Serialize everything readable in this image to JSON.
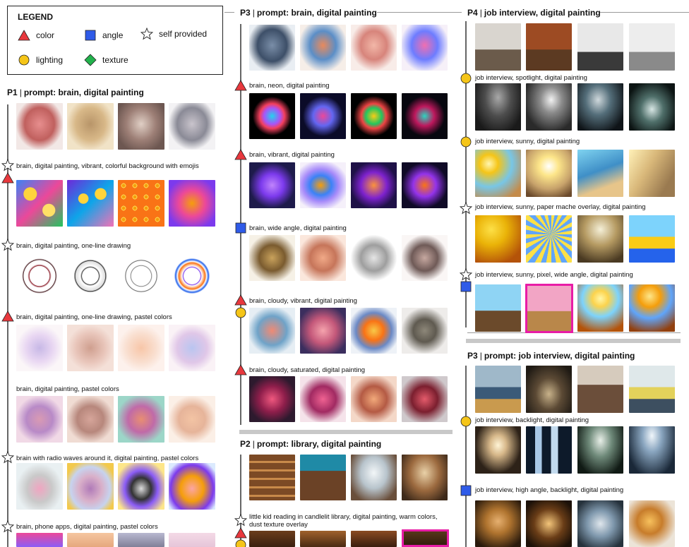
{
  "legend": {
    "title": "LEGEND",
    "items": [
      {
        "name": "color",
        "icon": "triangle-icon",
        "color": "#e8383d"
      },
      {
        "name": "angle",
        "icon": "square-icon",
        "color": "#2f5be8"
      },
      {
        "name": "self provided",
        "icon": "star-icon",
        "color": "#ffffff"
      },
      {
        "name": "lighting",
        "icon": "circle-icon",
        "color": "#f5c518"
      },
      {
        "name": "texture",
        "icon": "diamond-icon",
        "color": "#22b24c"
      }
    ]
  },
  "sections": {
    "p1_brain": {
      "participant": "P1",
      "prompt": "prompt: brain, digital painting",
      "steps": [
        {
          "label": ""
        },
        {
          "label": "brain, digital painting, vibrant, colorful background with emojis"
        },
        {
          "label": "brain, digital painting, one-line drawing"
        },
        {
          "label": "brain, digital painting, one-line drawing, pastel colors"
        },
        {
          "label": "brain, digital painting, pastel colors"
        },
        {
          "label": "brain with radio waves around it, digital painting, pastel colors"
        },
        {
          "label": "brain, phone apps, digital painting, pastel colors"
        }
      ]
    },
    "p3_brain": {
      "participant": "P3",
      "prompt": "prompt: brain, digital painting",
      "steps": [
        {
          "label": ""
        },
        {
          "label": "brain, neon, digital painting"
        },
        {
          "label": "brain, vibrant, digital painting"
        },
        {
          "label": "brain, wide angle, digital painting"
        },
        {
          "label": "brain, cloudy, vibrant, digital painting"
        },
        {
          "label": "brain, cloudy, saturated, digital painting"
        }
      ]
    },
    "p2_library": {
      "participant": "P2",
      "prompt": "prompt: library, digital painting",
      "steps": [
        {
          "label": ""
        },
        {
          "label": "little kid reading in candlelit library, digital painting, warm colors, dust texture overlay"
        }
      ]
    },
    "p4_job": {
      "participant": "P4",
      "prompt": "job interview, digital painting",
      "steps": [
        {
          "label": ""
        },
        {
          "label": "job interview, spotlight, digital painting"
        },
        {
          "label": "job interview, sunny, digital painting"
        },
        {
          "label": "job interview, sunny, paper mache overlay, digital painting"
        },
        {
          "label": "job interview, sunny, pixel, wide angle, digital painting"
        }
      ]
    },
    "p3_job": {
      "participant": "P3",
      "prompt": "prompt: job interview, digital painting",
      "steps": [
        {
          "label": ""
        },
        {
          "label": "job interview, backlight, digital painting"
        },
        {
          "label": "job interview, high angle, backlight, digital painting"
        }
      ]
    }
  }
}
